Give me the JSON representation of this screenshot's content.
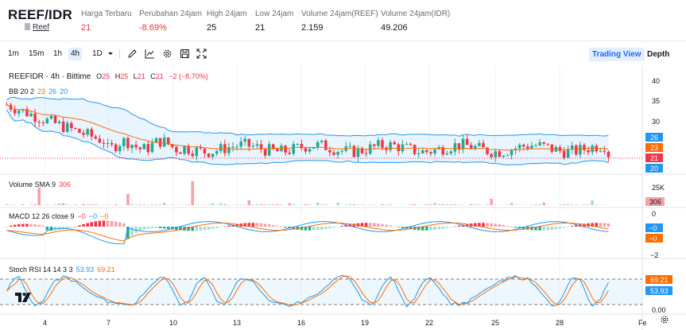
{
  "header": {
    "pair": "REEF/IDR",
    "sub_pair": "Reef",
    "stats": [
      {
        "label": "Harga Terbaru",
        "value": "21",
        "color": "red"
      },
      {
        "label": "Perubahan 24jam",
        "value": "-8.69%",
        "color": "red"
      },
      {
        "label": "High 24jam",
        "value": "25",
        "color": "normal"
      },
      {
        "label": "Low 24jam",
        "value": "21",
        "color": "normal"
      },
      {
        "label": "Volume 24jam(REEF)",
        "value": "2.159",
        "color": "normal"
      },
      {
        "label": "Volume 24jam(IDR)",
        "value": "49.206",
        "color": "normal"
      }
    ]
  },
  "toolbar": {
    "intervals": [
      "1m",
      "15m",
      "1h",
      "4h",
      "1D"
    ],
    "active_interval": "4h",
    "icons": [
      "chevron-down-icon",
      "pencil-icon",
      "line-chart-icon",
      "gear-icon",
      "save-icon",
      "fullscreen-icon"
    ],
    "trading_view": "Trading View",
    "depth": "Depth"
  },
  "chart": {
    "title": "REEFIDR · 4h · Bittime",
    "ohlc": {
      "o_label": "O",
      "o": "25",
      "h_label": "H",
      "h": "25",
      "l_label": "L",
      "l": "21",
      "c_label": "C",
      "c": "21",
      "change": "−2 (−8.70%)"
    },
    "bb": {
      "label": "BB 20 2",
      "v1": "23",
      "v2": "26",
      "v3": "20"
    },
    "volume": {
      "label": "Volume SMA 9",
      "value": "306"
    },
    "macd": {
      "label": "MACD 12 26 close 9",
      "v1": "−0",
      "v2": "−0",
      "v3": "−0"
    },
    "stoch": {
      "label": "Stoch RSI 14 14 3 3",
      "v1": "53.93",
      "v2": "69.21"
    },
    "price_axis": [
      "40",
      "35",
      "30",
      "26",
      "23",
      "21",
      "20"
    ],
    "volume_axis": [
      "25K",
      "306"
    ],
    "macd_axis": [
      "0",
      "−0",
      "−0",
      "−2"
    ],
    "stoch_axis": [
      "69.21",
      "53.93",
      "0.00"
    ],
    "x_labels": [
      "4",
      "7",
      "10",
      "13",
      "16",
      "19",
      "22",
      "25",
      "28",
      "Fe"
    ],
    "colors": {
      "up": "#22ab94",
      "down": "#f23645",
      "bb": "#2196f3",
      "basis": "#ff6d00",
      "macd": "#2196f3",
      "signal": "#ff6d00",
      "stoch_k": "#2196f3",
      "stoch_d": "#ff6d00"
    }
  }
}
